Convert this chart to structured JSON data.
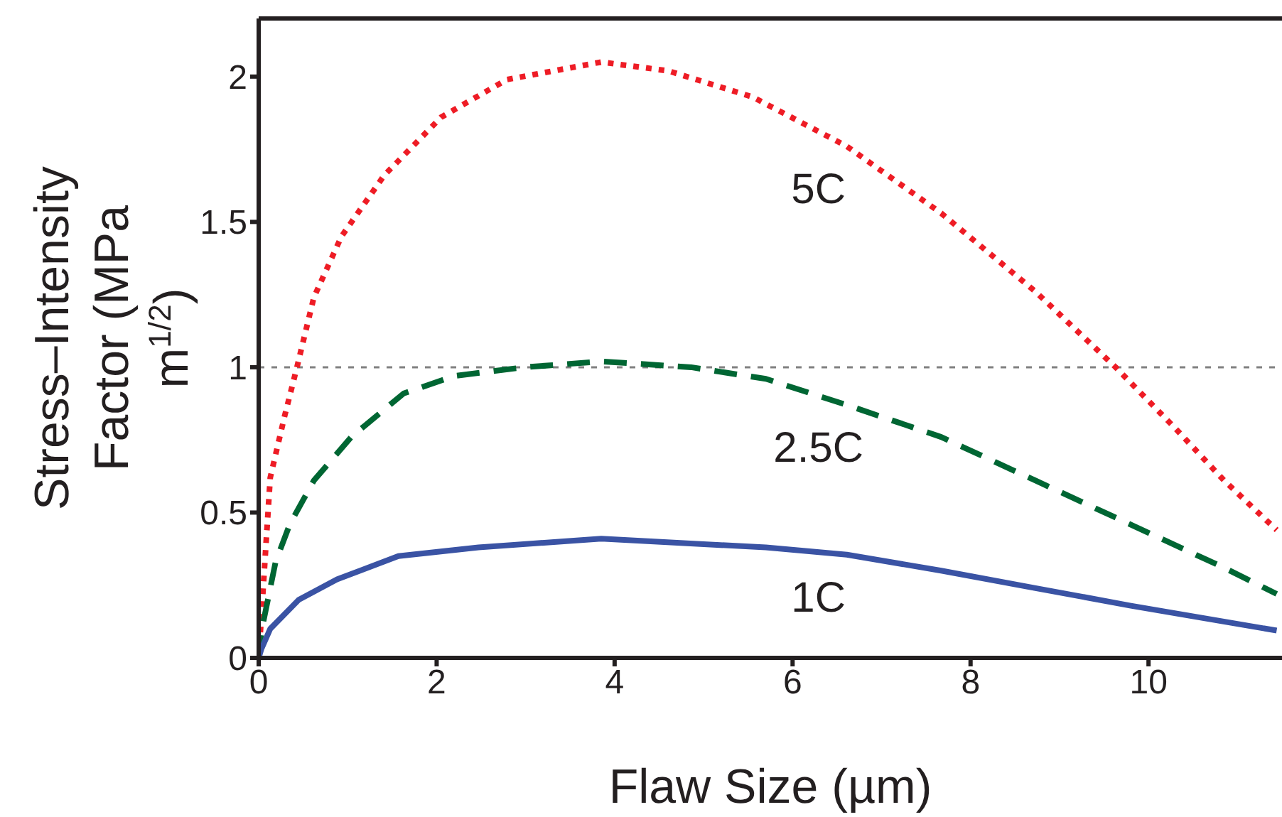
{
  "chart_data": {
    "type": "line",
    "xlabel": "Flaw Size (µm)",
    "ylabel": "Stress–Intensity Factor (MPa m$^{1/2}$)",
    "xlim": [
      0,
      11.5
    ],
    "xticks": [
      0,
      2,
      4,
      6,
      8,
      10
    ],
    "ylim": [
      0,
      2.2
    ],
    "yticks": [
      0,
      0.5,
      1,
      1.5,
      2
    ],
    "ref_lines": [
      {
        "axis": "y",
        "value": 1,
        "color": "#808080",
        "line_style": "dotted"
      }
    ],
    "series": [
      {
        "name": "5C",
        "color": "#ee1c25",
        "line_style": "dotted",
        "x": [
          0,
          0.03,
          0.13,
          0.29,
          0.43,
          0.62,
          0.93,
          1.41,
          2.05,
          2.79,
          3.85,
          4.6,
          5.55,
          6.61,
          7.67,
          8.73,
          9.63,
          10.3,
          10.85,
          11.44
        ],
        "values": [
          0,
          0.14,
          0.62,
          0.83,
          1.0,
          1.24,
          1.45,
          1.66,
          1.86,
          1.99,
          2.05,
          2.02,
          1.93,
          1.76,
          1.53,
          1.26,
          1.0,
          0.79,
          0.61,
          0.44
        ]
      },
      {
        "name": "2.5C",
        "color": "#006633",
        "line_style": "dashed",
        "x": [
          0,
          0.03,
          0.19,
          0.35,
          0.62,
          1.04,
          1.63,
          2.2,
          2.99,
          3.85,
          4.86,
          5.7,
          6.61,
          7.67,
          8.73,
          9.79,
          10.85,
          11.44
        ],
        "values": [
          0,
          0.09,
          0.33,
          0.46,
          0.61,
          0.76,
          0.91,
          0.97,
          1.0,
          1.02,
          1.0,
          0.96,
          0.87,
          0.76,
          0.61,
          0.46,
          0.31,
          0.22
        ]
      },
      {
        "name": "1C",
        "color": "#3a53a4",
        "line_style": "solid",
        "x": [
          0,
          0.03,
          0.13,
          0.45,
          0.88,
          1.57,
          2.47,
          3.85,
          5.7,
          6.61,
          7.67,
          8.73,
          9.79,
          11.44
        ],
        "values": [
          0,
          0.03,
          0.1,
          0.2,
          0.27,
          0.35,
          0.38,
          0.41,
          0.38,
          0.355,
          0.3,
          0.24,
          0.18,
          0.094
        ]
      }
    ]
  }
}
